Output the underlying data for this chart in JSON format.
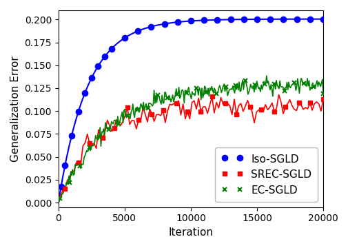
{
  "title": "",
  "xlabel": "Iteration",
  "ylabel": "Generalization Error",
  "xlim": [
    0,
    20000
  ],
  "ylim": [
    -0.005,
    0.21
  ],
  "yticks": [
    0.0,
    0.025,
    0.05,
    0.075,
    0.1,
    0.125,
    0.15,
    0.175,
    0.2
  ],
  "xticks": [
    0,
    5000,
    10000,
    15000,
    20000
  ],
  "legend_labels": [
    "SREC-SGLD",
    "Iso-SGLD",
    "EC-SGLD"
  ],
  "figsize": [
    5.06,
    3.6
  ],
  "dpi": 100,
  "background_color": "#ffffff",
  "iso_tau": 2200,
  "iso_asymptote": 0.2005,
  "srec_tau": 2500,
  "srec_asymptote": 0.105,
  "ec_tau": 3800,
  "ec_asymptote": 0.13
}
